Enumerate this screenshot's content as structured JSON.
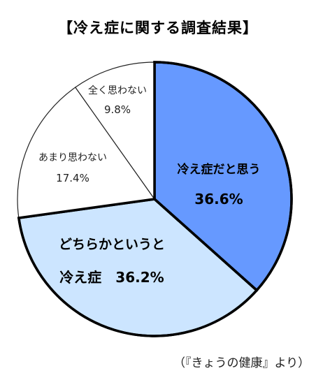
{
  "chart_data": {
    "type": "pie",
    "title": "【冷え症に関する調査結果】",
    "start": "12 o'clock",
    "direction": "clockwise",
    "slices": [
      {
        "label": "冷え症だと思う",
        "value": 36.6,
        "value_label": "36.6%",
        "color": "#6699FF"
      },
      {
        "label": "どちらかというと冷え症",
        "value": 36.2,
        "value_label": "36.2%",
        "color": "#CCE5FF"
      },
      {
        "label": "あまり思わない",
        "value": 17.4,
        "value_label": "17.4%",
        "color": "#FFFFFF"
      },
      {
        "label": "全く思わない",
        "value": 9.8,
        "value_label": "9.8%",
        "color": "#FFFFFF"
      }
    ],
    "label_lines": [
      [
        "冷え症だと思う",
        "36.6%"
      ],
      [
        "どちらかというと",
        "冷え症　36.2%"
      ],
      [
        "あまり思わない",
        "17.4%"
      ],
      [
        "全く思わない",
        "9.8%"
      ]
    ]
  },
  "source": "（『きょうの健康』より）"
}
